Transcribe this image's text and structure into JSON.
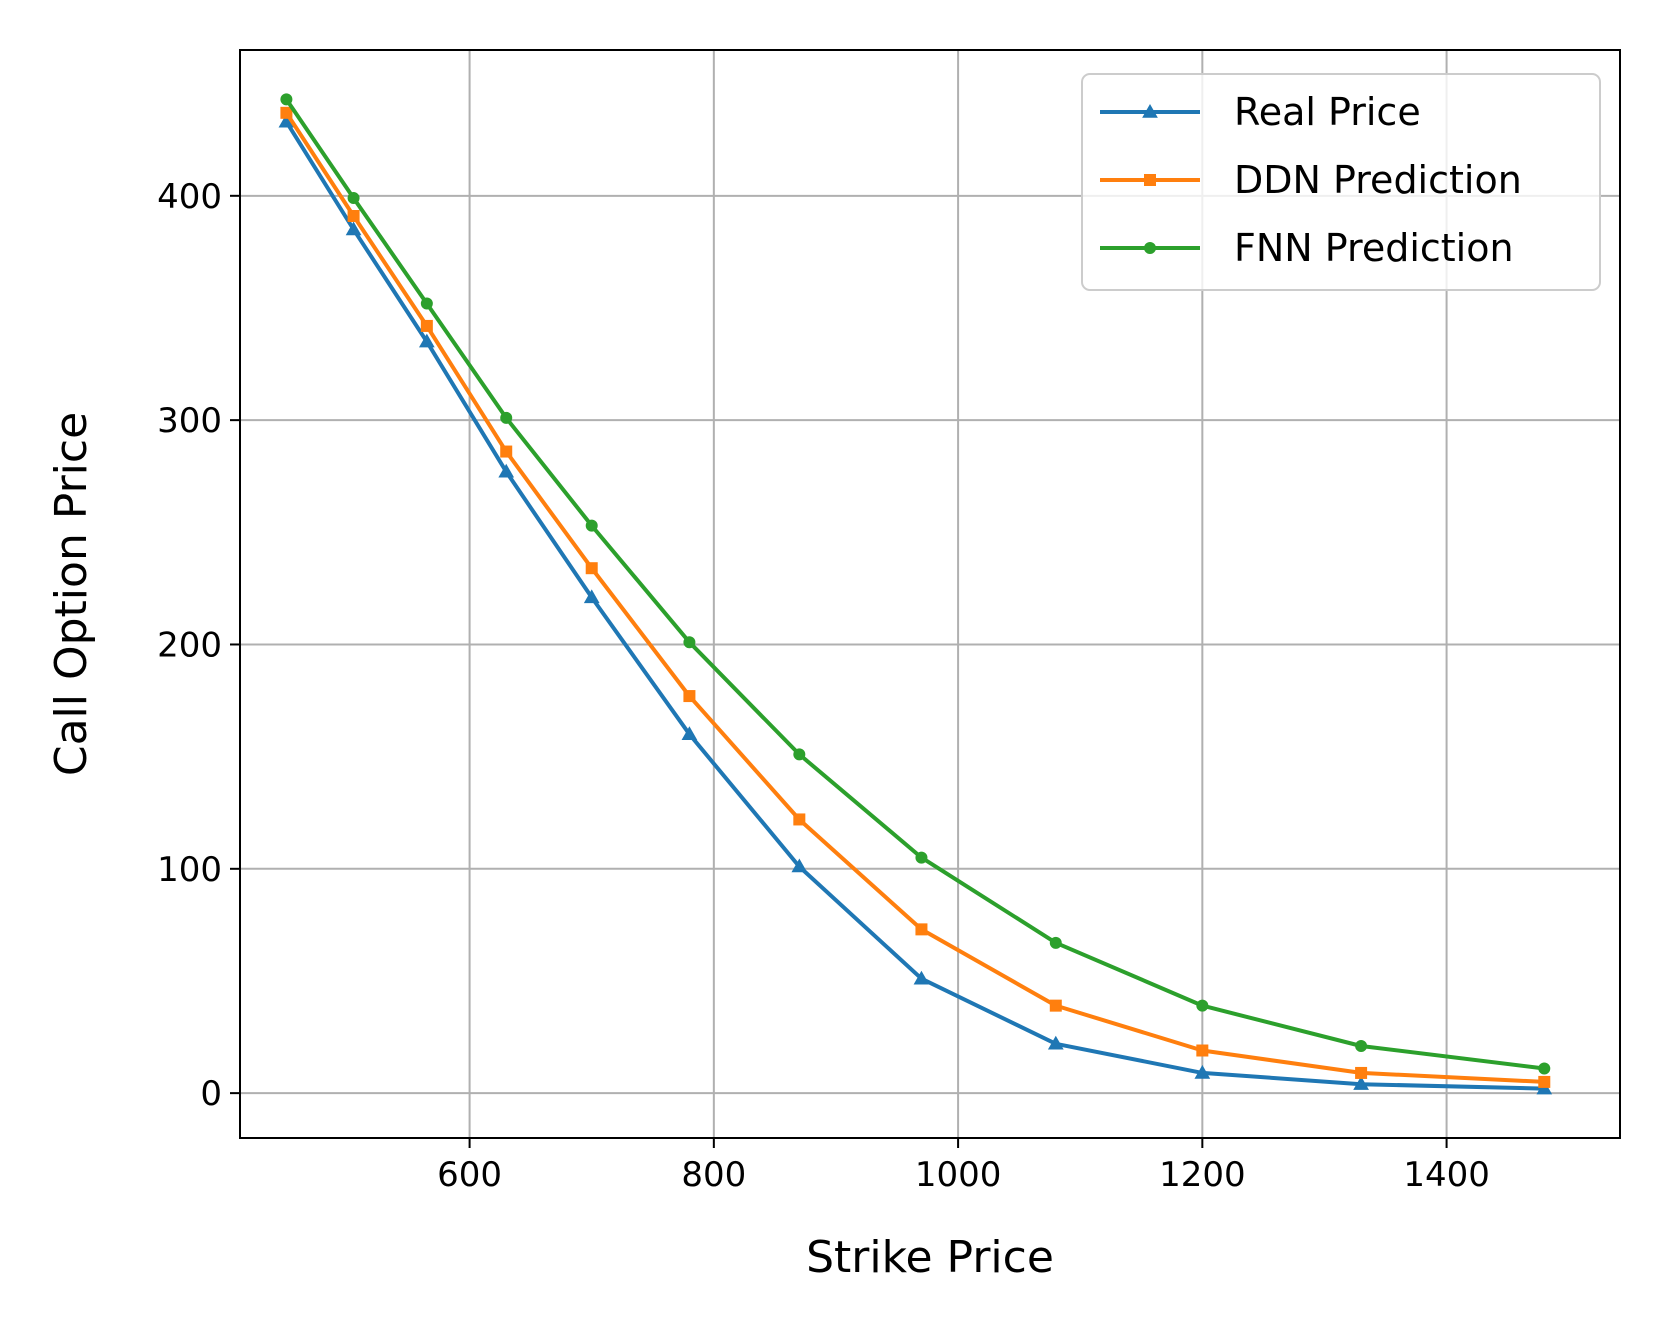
{
  "chart_data": {
    "type": "line",
    "title": "",
    "xlabel": "Strike Price",
    "ylabel": "Call Option Price",
    "xlim": [
      412,
      1542
    ],
    "ylim": [
      -20,
      465
    ],
    "xticks": [
      600,
      800,
      1000,
      1200,
      1400
    ],
    "yticks": [
      0,
      100,
      200,
      300,
      400
    ],
    "grid": true,
    "legend_position": "top-right",
    "x": [
      450,
      505,
      565,
      630,
      700,
      780,
      870,
      970,
      1080,
      1200,
      1330,
      1480
    ],
    "series": [
      {
        "name": "Real Price",
        "color": "#1f77b4",
        "marker": "triangle",
        "values": [
          433,
          385,
          335,
          277,
          221,
          160,
          101,
          51,
          22,
          9,
          4,
          2
        ]
      },
      {
        "name": "DDN Prediction",
        "color": "#ff7f0e",
        "marker": "square",
        "values": [
          437,
          391,
          342,
          286,
          234,
          177,
          122,
          73,
          39,
          19,
          9,
          5
        ]
      },
      {
        "name": "FNN Prediction",
        "color": "#2ca02c",
        "marker": "circle",
        "values": [
          443,
          399,
          352,
          301,
          253,
          201,
          151,
          105,
          67,
          39,
          21,
          11
        ]
      }
    ]
  }
}
